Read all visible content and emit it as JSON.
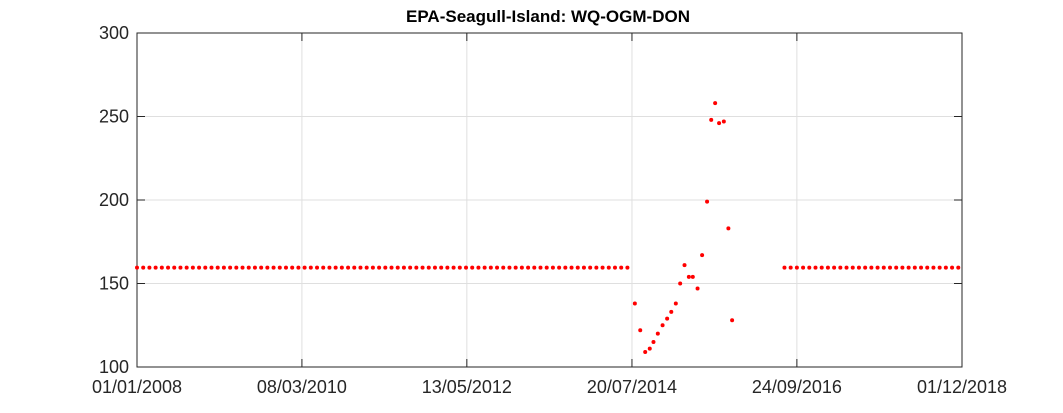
{
  "chart_data": {
    "type": "scatter",
    "title": "EPA-Seagull-Island: WQ-OGM-DON",
    "xlabel": "",
    "ylabel": "",
    "xlim": [
      "01/01/2008",
      "01/12/2018"
    ],
    "ylim": [
      100,
      300
    ],
    "grid": true,
    "x_tick_labels": [
      "01/01/2008",
      "08/03/2010",
      "13/05/2012",
      "20/07/2014",
      "24/09/2016",
      "01/12/2018"
    ],
    "y_tick_labels": [
      "100",
      "150",
      "200",
      "250",
      "300"
    ],
    "marker_color": "#ff0000",
    "series": [
      {
        "constant_segments": [
          {
            "start": "01/01/2008",
            "end": "20/07/2014",
            "value": 159.5,
            "interval_days": 30
          },
          {
            "start": "26/07/2016",
            "end": "01/12/2018",
            "value": 159.5,
            "interval_days": 30
          }
        ],
        "points": [
          {
            "x": "03/08/2014",
            "y": 138
          },
          {
            "x": "29/08/2014",
            "y": 122
          },
          {
            "x": "22/09/2014",
            "y": 109
          },
          {
            "x": "14/10/2014",
            "y": 111
          },
          {
            "x": "01/11/2014",
            "y": 115
          },
          {
            "x": "22/11/2014",
            "y": 120
          },
          {
            "x": "15/12/2014",
            "y": 125
          },
          {
            "x": "06/01/2015",
            "y": 129
          },
          {
            "x": "26/01/2015",
            "y": 133
          },
          {
            "x": "17/02/2015",
            "y": 138
          },
          {
            "x": "10/03/2015",
            "y": 150
          },
          {
            "x": "31/03/2015",
            "y": 161
          },
          {
            "x": "21/04/2015",
            "y": 154
          },
          {
            "x": "10/05/2015",
            "y": 154
          },
          {
            "x": "02/06/2015",
            "y": 147
          },
          {
            "x": "24/06/2015",
            "y": 167
          },
          {
            "x": "18/07/2015",
            "y": 199
          },
          {
            "x": "07/08/2015",
            "y": 248
          },
          {
            "x": "26/08/2015",
            "y": 258
          },
          {
            "x": "14/09/2015",
            "y": 246
          },
          {
            "x": "07/10/2015",
            "y": 247
          },
          {
            "x": "29/10/2015",
            "y": 183
          },
          {
            "x": "16/11/2015",
            "y": 128
          }
        ]
      }
    ]
  }
}
